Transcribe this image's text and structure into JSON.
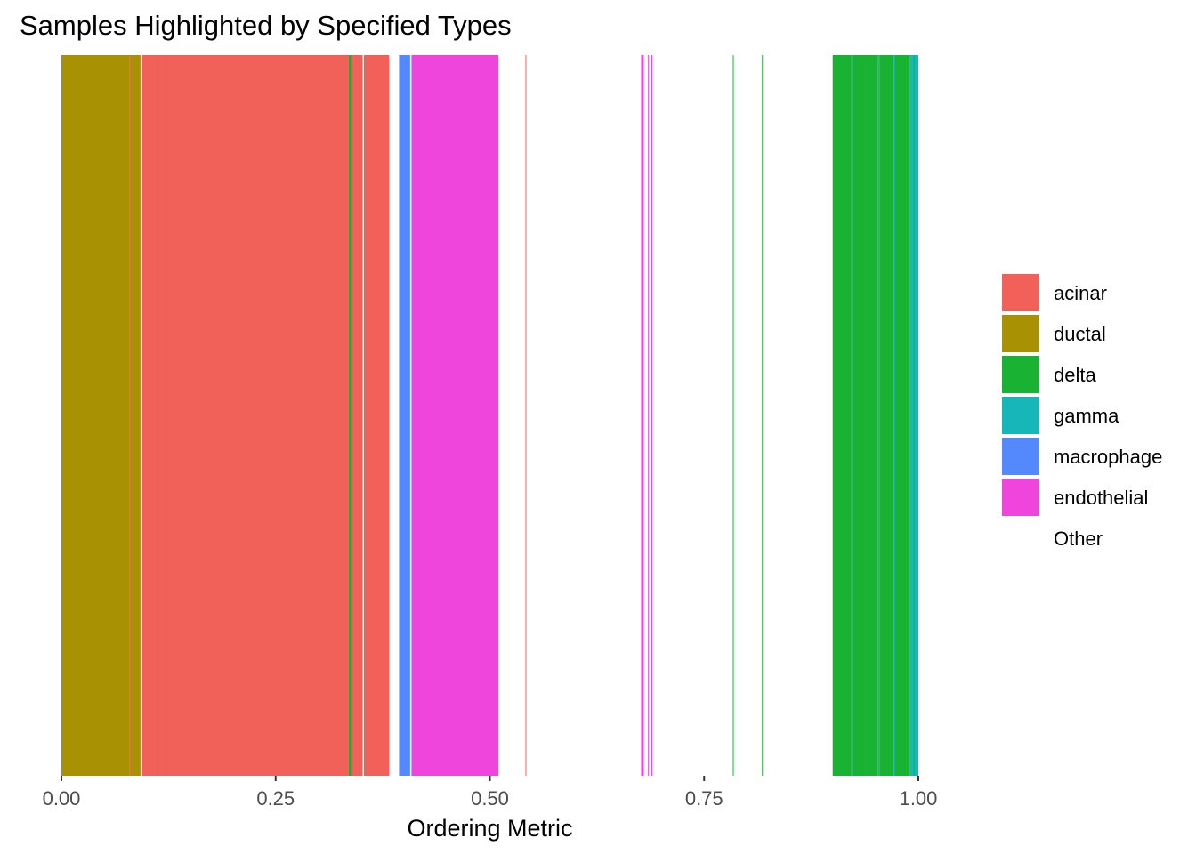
{
  "chart_data": {
    "type": "bar",
    "title": "Samples Highlighted by Specified Types",
    "xlabel": "Ordering Metric",
    "ylabel": "",
    "xlim": [
      0,
      1
    ],
    "xticks": [
      {
        "value": 0,
        "label": "0.00"
      },
      {
        "value": 0.25,
        "label": "0.25"
      },
      {
        "value": 0.5,
        "label": "0.50"
      },
      {
        "value": 0.75,
        "label": "0.75"
      },
      {
        "value": 1,
        "label": "1.00"
      }
    ],
    "grid": false,
    "legend_position": "right",
    "legend": [
      {
        "name": "acinar",
        "color": "#F16059"
      },
      {
        "name": "ductal",
        "color": "#A89102"
      },
      {
        "name": "delta",
        "color": "#19B232"
      },
      {
        "name": "gamma",
        "color": "#16B7B8"
      },
      {
        "name": "macrophage",
        "color": "#5489FD"
      },
      {
        "name": "endothelial",
        "color": "#EF45DD"
      },
      {
        "name": "Other",
        "color": "#FFFFFF"
      }
    ],
    "series": [
      {
        "type": "ductal",
        "start": 0.0,
        "end": 0.079
      },
      {
        "type": "acinar",
        "start": 0.079,
        "end": 0.0805
      },
      {
        "type": "ductal",
        "start": 0.0805,
        "end": 0.0915
      },
      {
        "type": "acinar",
        "start": 0.0915,
        "end": 0.093
      },
      {
        "type": "Other",
        "start": 0.093,
        "end": 0.0945
      },
      {
        "type": "acinar",
        "start": 0.0945,
        "end": 0.335
      },
      {
        "type": "delta",
        "start": 0.335,
        "end": 0.338
      },
      {
        "type": "acinar",
        "start": 0.338,
        "end": 0.3515
      },
      {
        "type": "Other",
        "start": 0.3515,
        "end": 0.353
      },
      {
        "type": "acinar",
        "start": 0.353,
        "end": 0.3825
      },
      {
        "type": "Other",
        "start": 0.3825,
        "end": 0.394
      },
      {
        "type": "macrophage",
        "start": 0.394,
        "end": 0.407
      },
      {
        "type": "Other",
        "start": 0.407,
        "end": 0.4085
      },
      {
        "type": "endothelial",
        "start": 0.4085,
        "end": 0.51
      },
      {
        "type": "acinar",
        "start": 0.5415,
        "end": 0.5425
      },
      {
        "type": "endothelial",
        "start": 0.6765,
        "end": 0.6795
      },
      {
        "type": "endothelial",
        "start": 0.6845,
        "end": 0.6855
      },
      {
        "type": "endothelial",
        "start": 0.6885,
        "end": 0.6895
      },
      {
        "type": "delta",
        "start": 0.7835,
        "end": 0.7845
      },
      {
        "type": "delta",
        "start": 0.8175,
        "end": 0.8185
      },
      {
        "type": "delta",
        "start": 0.9,
        "end": 0.922
      },
      {
        "type": "gamma",
        "start": 0.922,
        "end": 0.9235
      },
      {
        "type": "delta",
        "start": 0.9235,
        "end": 0.953
      },
      {
        "type": "gamma",
        "start": 0.953,
        "end": 0.9545
      },
      {
        "type": "delta",
        "start": 0.9545,
        "end": 0.971
      },
      {
        "type": "gamma",
        "start": 0.971,
        "end": 0.9725
      },
      {
        "type": "delta",
        "start": 0.9725,
        "end": 0.99
      },
      {
        "type": "gamma",
        "start": 0.99,
        "end": 1.0
      }
    ],
    "separators": [
      {
        "type": "acinar",
        "at": 0.1
      },
      {
        "type": "acinar",
        "at": 0.106
      },
      {
        "type": "acinar",
        "at": 0.112
      },
      {
        "type": "acinar",
        "at": 0.118
      },
      {
        "type": "acinar",
        "at": 0.124
      },
      {
        "type": "acinar",
        "at": 0.13
      },
      {
        "type": "acinar",
        "at": 0.136
      },
      {
        "type": "delta",
        "at": 0.929
      },
      {
        "type": "delta",
        "at": 0.935
      },
      {
        "type": "delta",
        "at": 0.941
      },
      {
        "type": "delta",
        "at": 0.947
      },
      {
        "type": "delta",
        "at": 0.96
      },
      {
        "type": "delta",
        "at": 0.966
      },
      {
        "type": "delta",
        "at": 0.978
      },
      {
        "type": "delta",
        "at": 0.984
      },
      {
        "type": "delta",
        "at": 0.995
      }
    ]
  }
}
